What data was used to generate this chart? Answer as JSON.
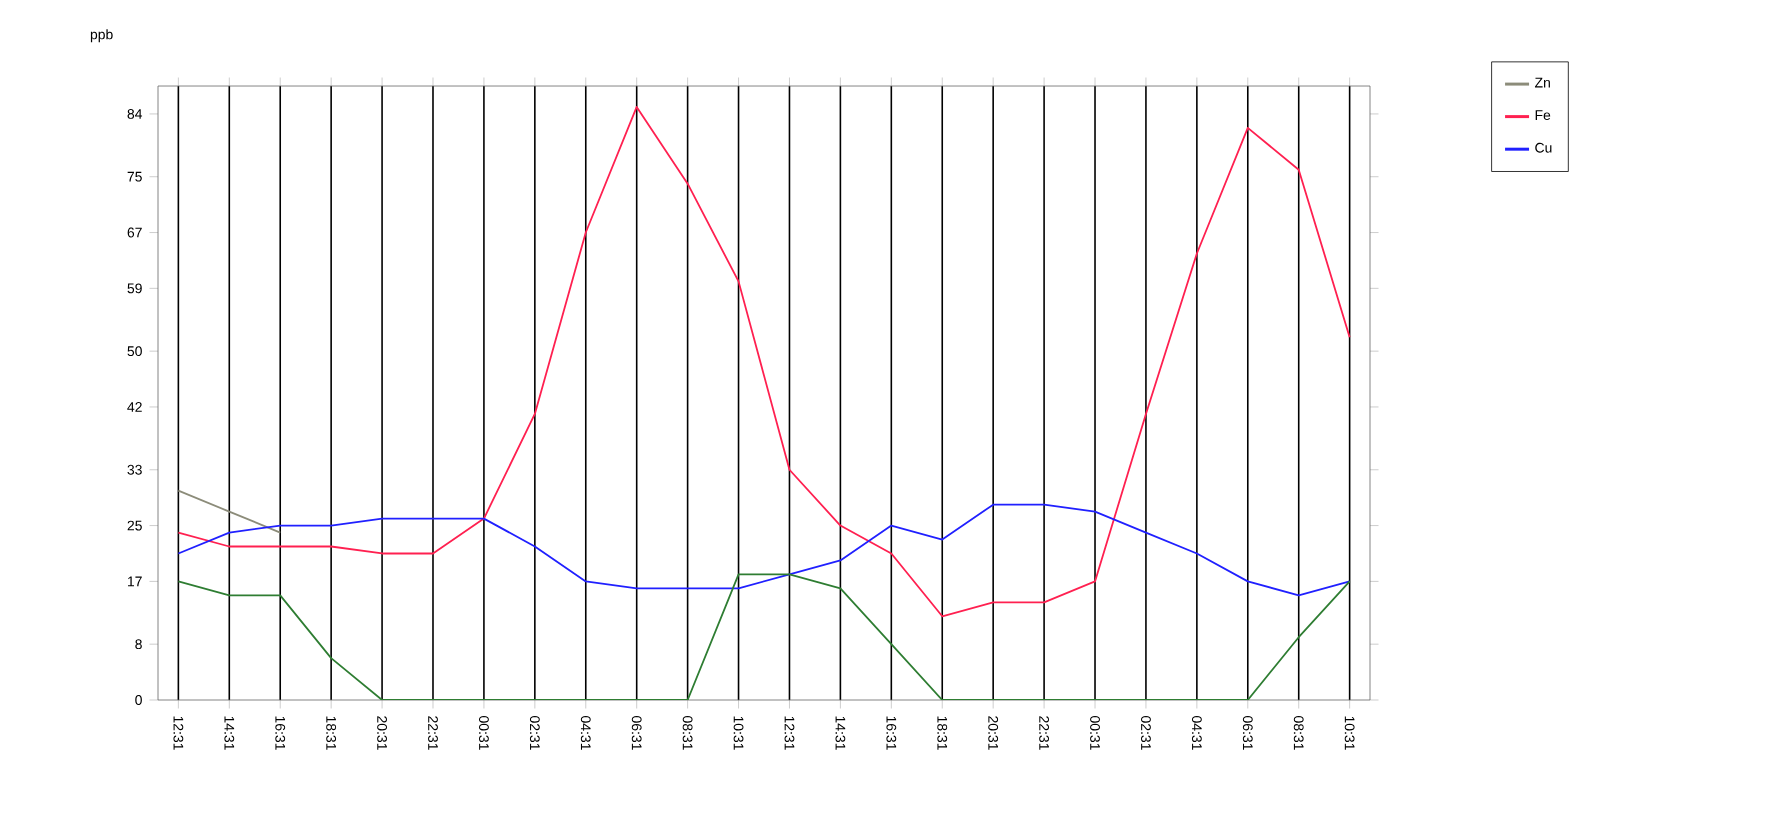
{
  "chart_data": {
    "type": "line",
    "ylabel": "ppb",
    "categories": [
      "12:31",
      "14:31",
      "16:31",
      "18:31",
      "20:31",
      "22:31",
      "00:31",
      "02:31",
      "04:31",
      "06:31",
      "08:31",
      "10:31",
      "12:31",
      "14:31",
      "16:31",
      "18:31",
      "20:31",
      "22:31",
      "00:31",
      "02:31",
      "04:31",
      "06:31",
      "08:31",
      "10:31"
    ],
    "series": [
      {
        "name": "Zn",
        "color": "#8c8c7a",
        "values": [
          30,
          27,
          24,
          null,
          null,
          null,
          null,
          null,
          null,
          null,
          null,
          null,
          null,
          null,
          null,
          null,
          null,
          null,
          null,
          null,
          null,
          null,
          null,
          null
        ]
      },
      {
        "name": "Fe",
        "color": "#ff2050",
        "values": [
          24,
          22,
          22,
          22,
          21,
          21,
          26,
          41,
          67,
          85,
          74,
          60,
          33,
          25,
          21,
          12,
          14,
          14,
          17,
          41,
          64,
          82,
          76,
          52
        ]
      },
      {
        "name": "Cu",
        "color": "#2020ff",
        "values": [
          21,
          24,
          25,
          25,
          26,
          26,
          26,
          22,
          17,
          16,
          16,
          16,
          18,
          20,
          25,
          23,
          28,
          28,
          27,
          24,
          21,
          17,
          15,
          17
        ]
      },
      {
        "color": "#2e7d32",
        "values": [
          17,
          15,
          15,
          6,
          0,
          0,
          0,
          0,
          0,
          0,
          0,
          18,
          18,
          16,
          8,
          0,
          0,
          0,
          0,
          0,
          0,
          0,
          9,
          17
        ]
      }
    ],
    "ylim": [
      0,
      88
    ],
    "yticks": [
      0,
      8,
      17,
      25,
      33,
      42,
      50,
      59,
      67,
      75,
      84
    ],
    "grid": "x",
    "legend": "right",
    "marker": "none",
    "line_style": "solid"
  }
}
